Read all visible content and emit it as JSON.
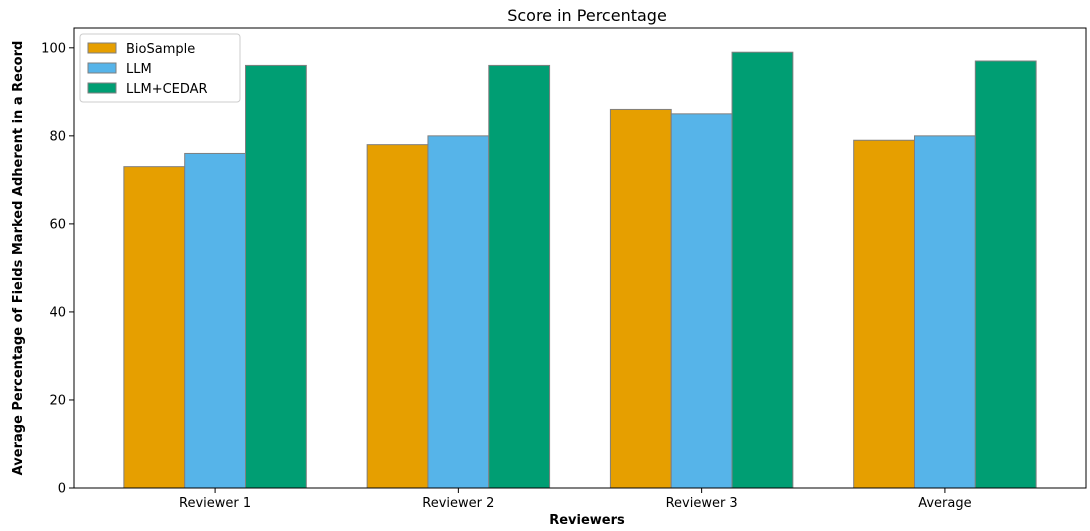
{
  "chart_data": {
    "type": "bar",
    "title": "Score in Percentage",
    "xlabel": "Reviewers",
    "ylabel": "Average Percentage of Fields Marked Adherent in a Record",
    "categories": [
      "Reviewer 1",
      "Reviewer 2",
      "Reviewer 3",
      "Average"
    ],
    "series": [
      {
        "name": "BioSample",
        "color": "#E69F00",
        "values": [
          73,
          78,
          86,
          79
        ]
      },
      {
        "name": "LLM",
        "color": "#56B4E9",
        "values": [
          76,
          80,
          85,
          80
        ]
      },
      {
        "name": "LLM+CEDAR",
        "color": "#009E73",
        "values": [
          96,
          96,
          99,
          97
        ]
      }
    ],
    "ylim": [
      0,
      104.5
    ],
    "yticks": [
      0,
      20,
      40,
      60,
      80,
      100
    ],
    "grid": false,
    "legend_position": "top-left",
    "bar_edge_color": "#7f7f7f"
  }
}
